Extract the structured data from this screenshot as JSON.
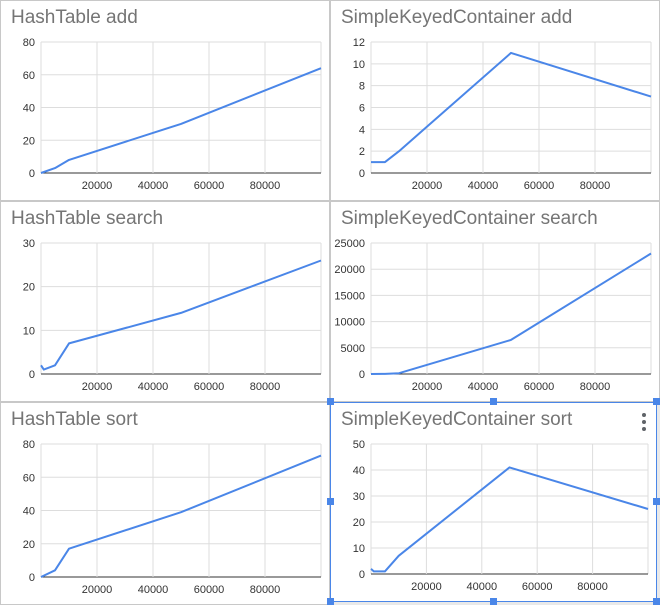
{
  "colors": {
    "line": "#4a86e8",
    "grid": "#dddddd",
    "title": "#757575",
    "tick": "#333333",
    "selection": "#4a86e8"
  },
  "chart_data": [
    {
      "type": "line",
      "title": "HashTable add",
      "xlabel": "",
      "ylabel": "",
      "xlim": [
        0,
        100000
      ],
      "ylim": [
        0,
        80
      ],
      "xticks": [
        20000,
        40000,
        60000,
        80000
      ],
      "yticks": [
        0,
        20,
        40,
        60,
        80
      ],
      "series": [
        {
          "x": [
            0,
            5000,
            10000,
            50000,
            100000
          ],
          "y": [
            0,
            3,
            8,
            30,
            64
          ]
        }
      ]
    },
    {
      "type": "line",
      "title": "SimpleKeyedContainer add",
      "xlabel": "",
      "ylabel": "",
      "xlim": [
        0,
        100000
      ],
      "ylim": [
        0,
        12
      ],
      "xticks": [
        20000,
        40000,
        60000,
        80000
      ],
      "yticks": [
        0,
        2,
        4,
        6,
        8,
        10,
        12
      ],
      "series": [
        {
          "x": [
            0,
            5000,
            10000,
            50000,
            100000
          ],
          "y": [
            1,
            1,
            2,
            11,
            7
          ]
        }
      ]
    },
    {
      "type": "line",
      "title": "HashTable search",
      "xlabel": "",
      "ylabel": "",
      "xlim": [
        0,
        100000
      ],
      "ylim": [
        0,
        30
      ],
      "xticks": [
        20000,
        40000,
        60000,
        80000
      ],
      "yticks": [
        0,
        10,
        20,
        30
      ],
      "series": [
        {
          "x": [
            0,
            1000,
            5000,
            10000,
            50000,
            100000
          ],
          "y": [
            2,
            1,
            2,
            7,
            14,
            26
          ]
        }
      ]
    },
    {
      "type": "line",
      "title": "SimpleKeyedContainer search",
      "xlabel": "",
      "ylabel": "",
      "xlim": [
        0,
        100000
      ],
      "ylim": [
        0,
        25000
      ],
      "xticks": [
        20000,
        40000,
        60000,
        80000
      ],
      "yticks": [
        0,
        5000,
        10000,
        15000,
        20000,
        25000
      ],
      "series": [
        {
          "x": [
            0,
            5000,
            10000,
            50000,
            100000
          ],
          "y": [
            0,
            20,
            150,
            6500,
            23000
          ]
        }
      ]
    },
    {
      "type": "line",
      "title": "HashTable sort",
      "xlabel": "",
      "ylabel": "",
      "xlim": [
        0,
        100000
      ],
      "ylim": [
        0,
        80
      ],
      "xticks": [
        20000,
        40000,
        60000,
        80000
      ],
      "yticks": [
        0,
        20,
        40,
        60,
        80
      ],
      "series": [
        {
          "x": [
            0,
            5000,
            10000,
            50000,
            100000
          ],
          "y": [
            0,
            4,
            17,
            39,
            73
          ]
        }
      ]
    },
    {
      "type": "line",
      "title": "SimpleKeyedContainer sort",
      "xlabel": "",
      "ylabel": "",
      "xlim": [
        0,
        100000
      ],
      "ylim": [
        0,
        50
      ],
      "xticks": [
        20000,
        40000,
        60000,
        80000
      ],
      "yticks": [
        0,
        10,
        20,
        30,
        40,
        50
      ],
      "series": [
        {
          "x": [
            0,
            1000,
            5000,
            10000,
            50000,
            100000
          ],
          "y": [
            2,
            1,
            1,
            7,
            41,
            25
          ]
        }
      ]
    }
  ]
}
